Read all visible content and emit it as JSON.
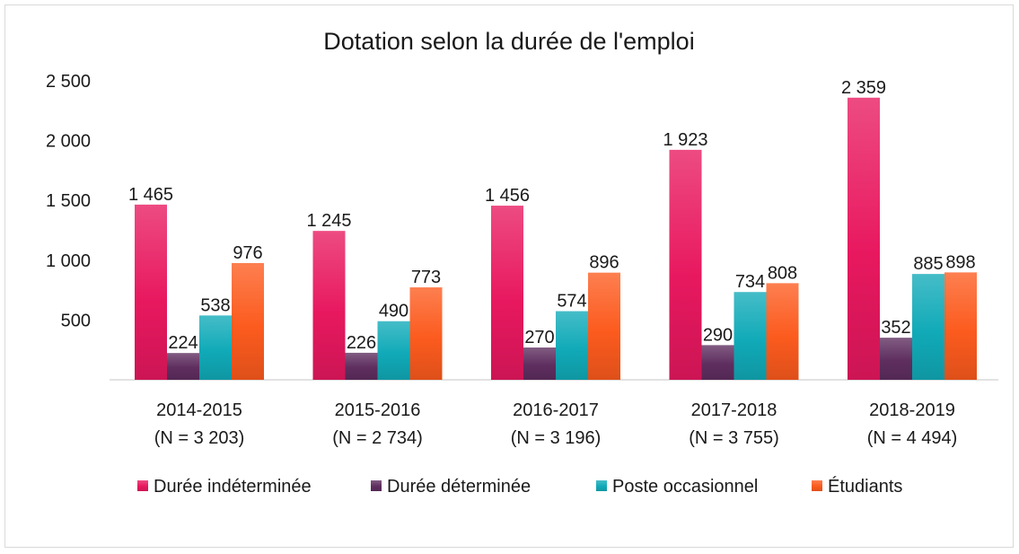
{
  "chart_data": {
    "type": "bar",
    "title": "Dotation selon la durée de l'emploi",
    "categories": [
      "2014-2015",
      "2015-2016",
      "2016-2017",
      "2017-2018",
      "2018-2019"
    ],
    "category_notes": [
      "(N = 3 203)",
      "(N = 2 734)",
      "(N = 3 196)",
      "(N = 3 755)",
      "(N = 4 494)"
    ],
    "ylim": [
      0,
      2500
    ],
    "yticks": [
      {
        "value": 500,
        "label": "500"
      },
      {
        "value": 1000,
        "label": "1 000"
      },
      {
        "value": 1500,
        "label": "1 500"
      },
      {
        "value": 2000,
        "label": "2 000"
      },
      {
        "value": 2500,
        "label": "2 500"
      }
    ],
    "grid": false,
    "legend_position": "bottom",
    "series": [
      {
        "name": "Durée indéterminée",
        "color": "#e8185f",
        "values": [
          1465,
          1245,
          1456,
          1923,
          2359
        ],
        "labels": [
          "1 465",
          "1 245",
          "1 456",
          "1 923",
          "2 359"
        ]
      },
      {
        "name": "Durée déterminée",
        "color": "#5e2e5f",
        "values": [
          224,
          226,
          270,
          290,
          352
        ],
        "labels": [
          "224",
          "226",
          "270",
          "290",
          "352"
        ]
      },
      {
        "name": "Poste occasionnel",
        "color": "#11aab8",
        "values": [
          538,
          490,
          574,
          734,
          885
        ],
        "labels": [
          "538",
          "490",
          "574",
          "734",
          "885"
        ]
      },
      {
        "name": "Étudiants",
        "color": "#fc5b1e",
        "values": [
          976,
          773,
          896,
          808,
          898
        ],
        "labels": [
          "976",
          "773",
          "896",
          "808",
          "898"
        ]
      }
    ]
  }
}
